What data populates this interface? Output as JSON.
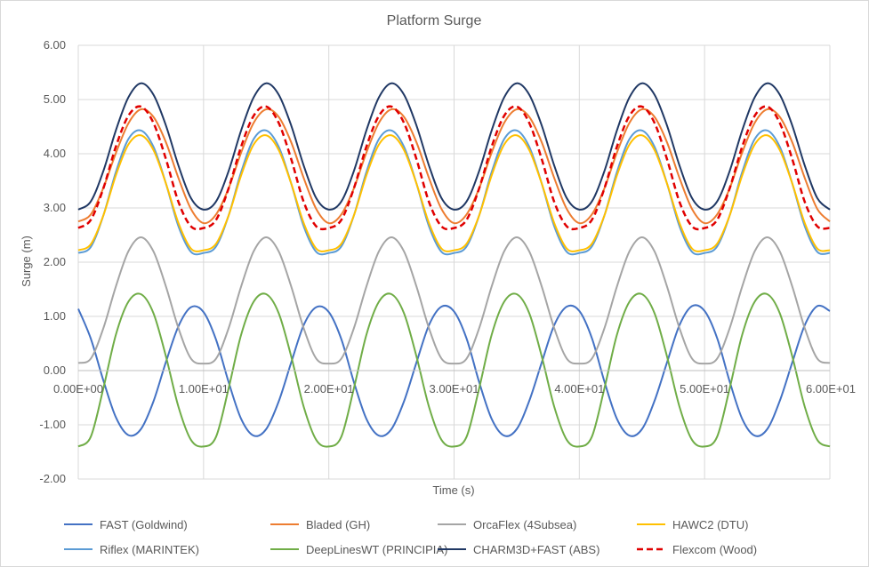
{
  "chart_data": {
    "type": "line",
    "title": "Platform Surge",
    "xlabel": "Time (s)",
    "ylabel": "Surge (m)",
    "xlim": [
      0,
      60
    ],
    "ylim": [
      -2,
      6
    ],
    "yticks": [
      "-2.00",
      "-1.00",
      "0.00",
      "1.00",
      "2.00",
      "3.00",
      "4.00",
      "5.00",
      "6.00"
    ],
    "xticks": [
      "0.00E+00",
      "1.00E+01",
      "2.00E+01",
      "3.00E+01",
      "4.00E+01",
      "5.00E+01",
      "6.00E+01"
    ],
    "grid": true,
    "legend_position": "bottom",
    "x": [
      0,
      1,
      2,
      3,
      4,
      5,
      6,
      7,
      8,
      9,
      10,
      11,
      12,
      13,
      14,
      15,
      16,
      17,
      18,
      19,
      20,
      21,
      22,
      23,
      24,
      25,
      26,
      27,
      28,
      29,
      30,
      31,
      32,
      33,
      34,
      35,
      36,
      37,
      38,
      39,
      40,
      41,
      42,
      43,
      44,
      45,
      46,
      47,
      48,
      49,
      50,
      51,
      52,
      53,
      54,
      55,
      56,
      57,
      58,
      59,
      60
    ],
    "series": [
      {
        "name": "FAST (Goldwind)",
        "color": "#4472c4",
        "dash": false,
        "values": [
          1.14,
          0.59,
          -0.18,
          -0.86,
          -1.19,
          -1.08,
          -0.57,
          0.16,
          0.82,
          1.17,
          1.08,
          0.57,
          -0.21,
          -0.89,
          -1.2,
          -1.08,
          -0.57,
          0.15,
          0.84,
          1.17,
          1.08,
          0.58,
          -0.21,
          -0.89,
          -1.2,
          -1.08,
          -0.57,
          0.15,
          0.84,
          1.18,
          1.09,
          0.59,
          -0.21,
          -0.89,
          -1.2,
          -1.08,
          -0.56,
          0.15,
          0.84,
          1.18,
          1.1,
          0.6,
          -0.2,
          -0.89,
          -1.2,
          -1.08,
          -0.56,
          0.15,
          0.84,
          1.19,
          1.1,
          0.6,
          -0.2,
          -0.89,
          -1.2,
          -1.08,
          -0.56,
          0.15,
          0.84,
          1.19,
          1.1
        ]
      },
      {
        "name": "Bladed (GH)",
        "color": "#ed7d31",
        "dash": false,
        "values": [
          2.75,
          2.88,
          3.37,
          4.01,
          4.56,
          4.82,
          4.68,
          4.21,
          3.55,
          2.98,
          2.72,
          2.88,
          3.36,
          4.02,
          4.57,
          4.82,
          4.68,
          4.21,
          3.55,
          2.98,
          2.72,
          2.88,
          3.36,
          4.02,
          4.57,
          4.82,
          4.68,
          4.21,
          3.55,
          2.98,
          2.72,
          2.88,
          3.36,
          4.02,
          4.57,
          4.82,
          4.68,
          4.21,
          3.55,
          2.98,
          2.72,
          2.88,
          3.36,
          4.02,
          4.57,
          4.82,
          4.68,
          4.21,
          3.55,
          2.98,
          2.72,
          2.88,
          3.36,
          4.02,
          4.57,
          4.82,
          4.68,
          4.21,
          3.55,
          2.98,
          2.75
        ]
      },
      {
        "name": "OrcaFlex (4Subsea)",
        "color": "#a5a5a5",
        "dash": false,
        "values": [
          0.14,
          0.22,
          0.78,
          1.55,
          2.2,
          2.46,
          2.2,
          1.55,
          0.78,
          0.22,
          0.13,
          0.22,
          0.78,
          1.55,
          2.2,
          2.46,
          2.2,
          1.55,
          0.78,
          0.22,
          0.13,
          0.22,
          0.78,
          1.55,
          2.2,
          2.46,
          2.2,
          1.55,
          0.78,
          0.22,
          0.13,
          0.22,
          0.78,
          1.55,
          2.2,
          2.46,
          2.2,
          1.55,
          0.78,
          0.22,
          0.13,
          0.22,
          0.78,
          1.55,
          2.2,
          2.46,
          2.2,
          1.55,
          0.78,
          0.22,
          0.13,
          0.22,
          0.78,
          1.55,
          2.2,
          2.46,
          2.2,
          1.55,
          0.78,
          0.22,
          0.14
        ]
      },
      {
        "name": "HAWC2 (DTU)",
        "color": "#ffc000",
        "dash": false,
        "values": [
          2.22,
          2.33,
          2.86,
          3.6,
          4.17,
          4.34,
          4.07,
          3.45,
          2.72,
          2.25,
          2.22,
          2.34,
          2.86,
          3.6,
          4.17,
          4.34,
          4.07,
          3.45,
          2.72,
          2.25,
          2.22,
          2.34,
          2.86,
          3.6,
          4.17,
          4.34,
          4.07,
          3.45,
          2.72,
          2.25,
          2.22,
          2.34,
          2.86,
          3.6,
          4.17,
          4.34,
          4.07,
          3.45,
          2.72,
          2.25,
          2.22,
          2.34,
          2.86,
          3.6,
          4.17,
          4.34,
          4.07,
          3.45,
          2.72,
          2.25,
          2.22,
          2.34,
          2.86,
          3.6,
          4.17,
          4.34,
          4.07,
          3.45,
          2.72,
          2.25,
          2.22
        ]
      },
      {
        "name": "Riflex (MARINTEK)",
        "color": "#5b9bd5",
        "dash": false,
        "values": [
          2.17,
          2.28,
          2.86,
          3.66,
          4.27,
          4.43,
          4.13,
          3.45,
          2.66,
          2.19,
          2.17,
          2.29,
          2.86,
          3.66,
          4.27,
          4.43,
          4.13,
          3.45,
          2.66,
          2.19,
          2.17,
          2.29,
          2.86,
          3.66,
          4.27,
          4.43,
          4.13,
          3.45,
          2.66,
          2.19,
          2.17,
          2.29,
          2.86,
          3.66,
          4.27,
          4.43,
          4.13,
          3.45,
          2.66,
          2.19,
          2.17,
          2.29,
          2.86,
          3.66,
          4.27,
          4.43,
          4.13,
          3.45,
          2.66,
          2.19,
          2.17,
          2.29,
          2.86,
          3.66,
          4.27,
          4.43,
          4.13,
          3.45,
          2.66,
          2.19,
          2.17
        ]
      },
      {
        "name": "DeepLinesWT (PRINCIPIA)",
        "color": "#70ad47",
        "dash": false,
        "values": [
          -1.4,
          -1.22,
          -0.33,
          0.66,
          1.27,
          1.41,
          1.06,
          0.26,
          -0.67,
          -1.28,
          -1.4,
          -1.22,
          -0.33,
          0.66,
          1.27,
          1.41,
          1.06,
          0.26,
          -0.67,
          -1.28,
          -1.4,
          -1.22,
          -0.33,
          0.66,
          1.27,
          1.41,
          1.06,
          0.26,
          -0.67,
          -1.28,
          -1.4,
          -1.22,
          -0.33,
          0.66,
          1.27,
          1.41,
          1.06,
          0.26,
          -0.67,
          -1.28,
          -1.4,
          -1.22,
          -0.33,
          0.66,
          1.27,
          1.41,
          1.06,
          0.26,
          -0.67,
          -1.28,
          -1.4,
          -1.22,
          -0.33,
          0.66,
          1.27,
          1.41,
          1.06,
          0.26,
          -0.67,
          -1.28,
          -1.4
        ]
      },
      {
        "name": "CHARM3D+FAST (ABS)",
        "color": "#203864",
        "dash": false,
        "values": [
          2.97,
          3.12,
          3.68,
          4.43,
          5.04,
          5.3,
          5.09,
          4.52,
          3.78,
          3.18,
          2.97,
          3.12,
          3.68,
          4.43,
          5.04,
          5.3,
          5.09,
          4.52,
          3.78,
          3.18,
          2.97,
          3.12,
          3.68,
          4.43,
          5.04,
          5.3,
          5.09,
          4.52,
          3.78,
          3.18,
          2.97,
          3.12,
          3.68,
          4.43,
          5.04,
          5.3,
          5.09,
          4.52,
          3.78,
          3.18,
          2.97,
          3.12,
          3.68,
          4.43,
          5.04,
          5.3,
          5.09,
          4.52,
          3.78,
          3.18,
          2.97,
          3.12,
          3.68,
          4.43,
          5.04,
          5.3,
          5.09,
          4.52,
          3.78,
          3.18,
          2.97
        ]
      },
      {
        "name": "Flexcom (Wood)",
        "color": "#e00000",
        "dash": true,
        "values": [
          2.63,
          2.78,
          3.36,
          4.13,
          4.7,
          4.87,
          4.57,
          3.9,
          3.11,
          2.66,
          2.63,
          2.78,
          3.36,
          4.13,
          4.7,
          4.87,
          4.57,
          3.9,
          3.11,
          2.66,
          2.63,
          2.78,
          3.36,
          4.13,
          4.7,
          4.87,
          4.57,
          3.9,
          3.11,
          2.66,
          2.63,
          2.78,
          3.36,
          4.13,
          4.7,
          4.87,
          4.57,
          3.9,
          3.11,
          2.66,
          2.63,
          2.78,
          3.36,
          4.13,
          4.7,
          4.87,
          4.57,
          3.9,
          3.11,
          2.66,
          2.63,
          2.78,
          3.36,
          4.13,
          4.7,
          4.87,
          4.57,
          3.9,
          3.11,
          2.66,
          2.63
        ]
      }
    ]
  }
}
